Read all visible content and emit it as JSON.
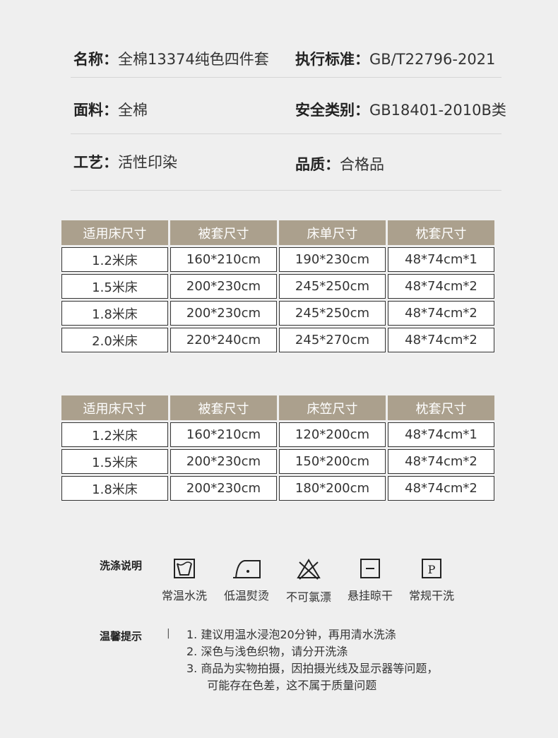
{
  "specs": [
    {
      "label": "名称：",
      "value": "全棉13374纯色四件套"
    },
    {
      "label": "执行标准：",
      "value": "GB/T22796-2021"
    },
    {
      "label": "面料：",
      "value": "全棉"
    },
    {
      "label": "安全类别：",
      "value": "GB18401-2010B类"
    },
    {
      "label": "工艺：",
      "value": "活性印染"
    },
    {
      "label": "品质：",
      "value": "合格品"
    }
  ],
  "table1": {
    "headers": [
      "适用床尺寸",
      "被套尺寸",
      "床单尺寸",
      "枕套尺寸"
    ],
    "rows": [
      [
        "1.2米床",
        "160*210cm",
        "190*230cm",
        "48*74cm*1"
      ],
      [
        "1.5米床",
        "200*230cm",
        "245*250cm",
        "48*74cm*2"
      ],
      [
        "1.8米床",
        "200*230cm",
        "245*250cm",
        "48*74cm*2"
      ],
      [
        "2.0米床",
        "220*240cm",
        "245*270cm",
        "48*74cm*2"
      ]
    ]
  },
  "table2": {
    "headers": [
      "适用床尺寸",
      "被套尺寸",
      "床笠尺寸",
      "枕套尺寸"
    ],
    "rows": [
      [
        "1.2米床",
        "160*210cm",
        "120*200cm",
        "48*74cm*1"
      ],
      [
        "1.5米床",
        "200*230cm",
        "150*200cm",
        "48*74cm*2"
      ],
      [
        "1.8米床",
        "200*230cm",
        "180*200cm",
        "48*74cm*2"
      ]
    ]
  },
  "care": {
    "title": "洗涤说明",
    "items": [
      {
        "icon": "wash-tub-icon",
        "label": "常温水洗"
      },
      {
        "icon": "iron-low-icon",
        "label": "低温熨烫"
      },
      {
        "icon": "no-bleach-icon",
        "label": "不可氯漂"
      },
      {
        "icon": "line-dry-icon",
        "label": "悬挂晾干"
      },
      {
        "icon": "dry-clean-p-icon",
        "label": "常规干洗",
        "glyph": "P"
      }
    ]
  },
  "tips": {
    "title": "温馨提示",
    "separator": "|",
    "lines": [
      "1. 建议用温水浸泡20分钟，再用清水洗涤",
      "2. 深色与浅色织物，请分开洗涤",
      "3. 商品为实物拍摄，因拍摄光线及显示器等问题，",
      "   可能存在色差，这不属于质量问题"
    ]
  },
  "colors": {
    "header": "#aba08d",
    "background": "#efefef"
  }
}
